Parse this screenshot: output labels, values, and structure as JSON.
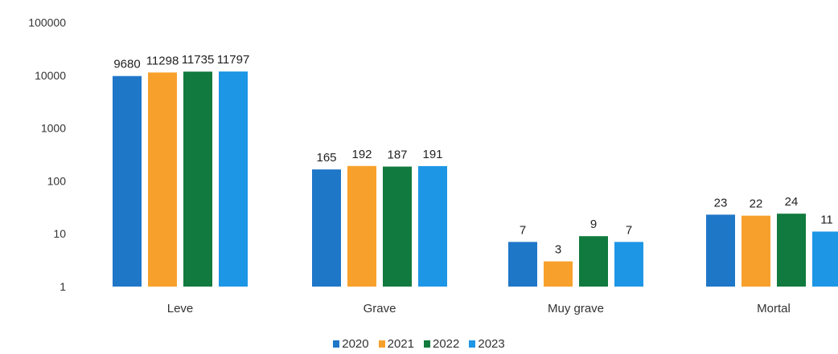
{
  "chart_data": {
    "type": "bar",
    "y_scale": "log",
    "ylim": [
      1,
      100000
    ],
    "y_ticks": [
      "1",
      "10",
      "100",
      "1000",
      "10000",
      "100000"
    ],
    "categories": [
      "Leve",
      "Grave",
      "Muy grave",
      "Mortal"
    ],
    "series": [
      {
        "name": "2020",
        "color": "#1f77c8",
        "values": [
          9680,
          165,
          7,
          23
        ]
      },
      {
        "name": "2021",
        "color": "#f7a12c",
        "values": [
          11298,
          192,
          3,
          22
        ]
      },
      {
        "name": "2022",
        "color": "#117a3e",
        "values": [
          11735,
          187,
          9,
          24
        ]
      },
      {
        "name": "2023",
        "color": "#1e96e6",
        "values": [
          11797,
          191,
          7,
          11
        ]
      }
    ],
    "data_labels": [
      [
        "9680",
        "11298",
        "11735",
        "11797"
      ],
      [
        "165",
        "192",
        "187",
        "191"
      ],
      [
        "7",
        "3",
        "9",
        "7"
      ],
      [
        "23",
        "22",
        "24",
        "11"
      ]
    ],
    "legend_position": "bottom",
    "grid": false
  }
}
